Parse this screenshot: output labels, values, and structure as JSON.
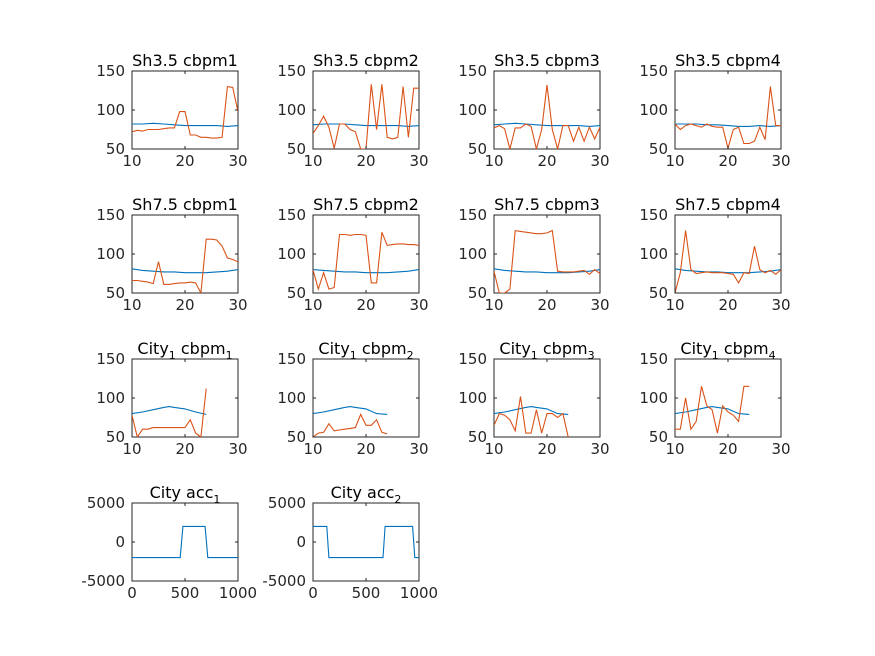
{
  "figure": {
    "background": "#ffffff",
    "axis_color": "#262626"
  },
  "chart_data": [
    {
      "type": "line",
      "title": "Sh3.5 cbpm1",
      "xlim": [
        10,
        30
      ],
      "ylim": [
        50,
        150
      ],
      "xticks": [
        10,
        20,
        30
      ],
      "yticks": [
        50,
        100,
        150
      ],
      "series": [
        {
          "color": "#0072BD",
          "x": [
            10,
            12,
            14,
            16,
            18,
            20,
            22,
            24,
            26,
            28,
            30
          ],
          "y": [
            82,
            82,
            83,
            82,
            81,
            80,
            80,
            80,
            80,
            79,
            80
          ]
        },
        {
          "color": "#D95319",
          "x": [
            10,
            11,
            12,
            13,
            14,
            15,
            16,
            17,
            18,
            19,
            20,
            21,
            22,
            23,
            24,
            25,
            26,
            27,
            28,
            29,
            30
          ],
          "y": [
            72,
            74,
            73,
            75,
            75,
            75,
            76,
            77,
            77,
            98,
            98,
            68,
            68,
            65,
            65,
            64,
            64,
            65,
            130,
            129,
            98
          ]
        }
      ]
    },
    {
      "type": "line",
      "title": "Sh3.5 cbpm2",
      "xlim": [
        10,
        30
      ],
      "ylim": [
        50,
        150
      ],
      "xticks": [
        10,
        20,
        30
      ],
      "yticks": [
        50,
        100,
        150
      ],
      "series": [
        {
          "color": "#0072BD",
          "x": [
            10,
            12,
            14,
            16,
            18,
            20,
            22,
            24,
            26,
            28,
            30
          ],
          "y": [
            81,
            82,
            82,
            82,
            81,
            80,
            80,
            80,
            80,
            79,
            80
          ]
        },
        {
          "color": "#D95319",
          "x": [
            10,
            11,
            12,
            13,
            14,
            15,
            16,
            17,
            18,
            19,
            20,
            21,
            22,
            23,
            24,
            25,
            26,
            27,
            28,
            29,
            30
          ],
          "y": [
            70,
            80,
            92,
            78,
            51,
            82,
            82,
            75,
            72,
            50,
            50,
            133,
            75,
            133,
            65,
            63,
            65,
            130,
            65,
            128,
            128
          ]
        }
      ]
    },
    {
      "type": "line",
      "title": "Sh3.5 cbpm3",
      "xlim": [
        10,
        30
      ],
      "ylim": [
        50,
        150
      ],
      "xticks": [
        10,
        20,
        30
      ],
      "yticks": [
        50,
        100,
        150
      ],
      "series": [
        {
          "color": "#0072BD",
          "x": [
            10,
            12,
            14,
            16,
            18,
            20,
            22,
            24,
            26,
            28,
            30
          ],
          "y": [
            81,
            82,
            83,
            82,
            81,
            80,
            80,
            80,
            80,
            79,
            80
          ]
        },
        {
          "color": "#D95319",
          "x": [
            10,
            11,
            12,
            13,
            14,
            15,
            16,
            17,
            18,
            19,
            20,
            21,
            22,
            23,
            24,
            25,
            26,
            27,
            28,
            29,
            30
          ],
          "y": [
            77,
            80,
            76,
            50,
            77,
            77,
            82,
            79,
            50,
            75,
            132,
            75,
            50,
            80,
            80,
            60,
            78,
            60,
            78,
            63,
            78
          ]
        }
      ]
    },
    {
      "type": "line",
      "title": "Sh3.5 cbpm4",
      "xlim": [
        10,
        30
      ],
      "ylim": [
        50,
        150
      ],
      "xticks": [
        10,
        20,
        30
      ],
      "yticks": [
        50,
        100,
        150
      ],
      "series": [
        {
          "color": "#0072BD",
          "x": [
            10,
            12,
            14,
            16,
            18,
            20,
            22,
            24,
            26,
            28,
            30
          ],
          "y": [
            82,
            82,
            82,
            81,
            81,
            80,
            79,
            79,
            80,
            79,
            80
          ]
        },
        {
          "color": "#D95319",
          "x": [
            10,
            11,
            12,
            13,
            14,
            15,
            16,
            17,
            18,
            19,
            20,
            21,
            22,
            23,
            24,
            25,
            26,
            27,
            28,
            29,
            30
          ],
          "y": [
            82,
            75,
            80,
            82,
            80,
            78,
            82,
            79,
            78,
            78,
            51,
            75,
            78,
            57,
            57,
            60,
            78,
            62,
            130,
            80,
            80
          ]
        }
      ]
    },
    {
      "type": "line",
      "title": "Sh7.5 cbpm1",
      "xlim": [
        10,
        30
      ],
      "ylim": [
        50,
        150
      ],
      "xticks": [
        10,
        20,
        30
      ],
      "yticks": [
        50,
        100,
        150
      ],
      "series": [
        {
          "color": "#0072BD",
          "x": [
            10,
            12,
            14,
            16,
            18,
            20,
            22,
            24,
            26,
            28,
            30
          ],
          "y": [
            81,
            79,
            78,
            77,
            77,
            76,
            76,
            76,
            77,
            78,
            80
          ]
        },
        {
          "color": "#D95319",
          "x": [
            10,
            11,
            12,
            13,
            14,
            15,
            16,
            17,
            18,
            19,
            20,
            21,
            22,
            23,
            24,
            25,
            26,
            27,
            28,
            29,
            30
          ],
          "y": [
            66,
            66,
            65,
            64,
            62,
            90,
            61,
            61,
            62,
            63,
            63,
            64,
            63,
            50,
            119,
            119,
            118,
            110,
            95,
            93,
            90
          ]
        }
      ]
    },
    {
      "type": "line",
      "title": "Sh7.5 cbpm2",
      "xlim": [
        10,
        30
      ],
      "ylim": [
        50,
        150
      ],
      "xticks": [
        10,
        20,
        30
      ],
      "yticks": [
        50,
        100,
        150
      ],
      "series": [
        {
          "color": "#0072BD",
          "x": [
            10,
            12,
            14,
            16,
            18,
            20,
            22,
            24,
            26,
            28,
            30
          ],
          "y": [
            80,
            79,
            78,
            77,
            77,
            76,
            76,
            76,
            77,
            78,
            80
          ]
        },
        {
          "color": "#D95319",
          "x": [
            10,
            11,
            12,
            13,
            14,
            15,
            16,
            17,
            18,
            19,
            20,
            21,
            22,
            23,
            24,
            25,
            26,
            27,
            28,
            29,
            30
          ],
          "y": [
            80,
            55,
            76,
            55,
            57,
            125,
            125,
            124,
            125,
            125,
            124,
            63,
            63,
            128,
            111,
            112,
            113,
            113,
            112,
            112,
            111
          ]
        }
      ]
    },
    {
      "type": "line",
      "title": "Sh7.5 cbpm3",
      "xlim": [
        10,
        30
      ],
      "ylim": [
        50,
        150
      ],
      "xticks": [
        10,
        20,
        30
      ],
      "yticks": [
        50,
        100,
        150
      ],
      "series": [
        {
          "color": "#0072BD",
          "x": [
            10,
            12,
            14,
            16,
            18,
            20,
            22,
            24,
            26,
            28,
            30
          ],
          "y": [
            81,
            79,
            78,
            77,
            77,
            76,
            76,
            76,
            77,
            78,
            80
          ]
        },
        {
          "color": "#D95319",
          "x": [
            10,
            11,
            12,
            13,
            14,
            15,
            16,
            17,
            18,
            19,
            20,
            21,
            22,
            23,
            24,
            25,
            26,
            27,
            28,
            29,
            30
          ],
          "y": [
            78,
            50,
            50,
            55,
            130,
            129,
            128,
            127,
            126,
            126,
            127,
            130,
            78,
            77,
            77,
            77,
            78,
            79,
            74,
            80,
            75
          ]
        }
      ]
    },
    {
      "type": "line",
      "title": "Sh7.5 cbpm4",
      "xlim": [
        10,
        30
      ],
      "ylim": [
        50,
        150
      ],
      "xticks": [
        10,
        20,
        30
      ],
      "yticks": [
        50,
        100,
        150
      ],
      "series": [
        {
          "color": "#0072BD",
          "x": [
            10,
            12,
            14,
            16,
            18,
            20,
            22,
            24,
            26,
            28,
            30
          ],
          "y": [
            81,
            79,
            78,
            77,
            77,
            76,
            76,
            76,
            77,
            78,
            80
          ]
        },
        {
          "color": "#D95319",
          "x": [
            10,
            11,
            12,
            13,
            14,
            15,
            16,
            17,
            18,
            19,
            20,
            21,
            22,
            23,
            24,
            25,
            26,
            27,
            28,
            29,
            30
          ],
          "y": [
            50,
            76,
            130,
            80,
            75,
            76,
            77,
            76,
            76,
            76,
            75,
            74,
            63,
            76,
            75,
            110,
            80,
            76,
            79,
            74,
            80
          ]
        }
      ]
    },
    {
      "type": "line",
      "title": "City",
      "title_sub": "1",
      "title_tail": "  cbpm",
      "title_tail_sub": "1",
      "xlim": [
        10,
        30
      ],
      "ylim": [
        50,
        150
      ],
      "xticks": [
        10,
        20,
        30
      ],
      "yticks": [
        50,
        100,
        150
      ],
      "series": [
        {
          "color": "#0072BD",
          "x": [
            10,
            12,
            14,
            16,
            17,
            18,
            20,
            22,
            24
          ],
          "y": [
            80,
            82,
            85,
            88,
            89,
            88,
            86,
            82,
            79
          ]
        },
        {
          "color": "#D95319",
          "x": [
            10,
            11,
            12,
            13,
            14,
            15,
            16,
            17,
            18,
            19,
            20,
            21,
            22,
            23,
            24
          ],
          "y": [
            78,
            50,
            60,
            60,
            62,
            62,
            62,
            62,
            62,
            62,
            62,
            72,
            55,
            50,
            112
          ]
        }
      ]
    },
    {
      "type": "line",
      "title": "City",
      "title_sub": "1",
      "title_tail": "  cbpm",
      "title_tail_sub": "2",
      "xlim": [
        10,
        30
      ],
      "ylim": [
        50,
        150
      ],
      "xticks": [
        10,
        20,
        30
      ],
      "yticks": [
        50,
        100,
        150
      ],
      "series": [
        {
          "color": "#0072BD",
          "x": [
            10,
            12,
            14,
            16,
            17,
            18,
            20,
            22,
            24
          ],
          "y": [
            80,
            82,
            85,
            88,
            89,
            88,
            86,
            80,
            79
          ]
        },
        {
          "color": "#D95319",
          "x": [
            10,
            11,
            12,
            13,
            14,
            15,
            16,
            17,
            18,
            19,
            20,
            21,
            22,
            23,
            24
          ],
          "y": [
            50,
            55,
            56,
            67,
            58,
            59,
            60,
            61,
            62,
            79,
            65,
            65,
            72,
            56,
            54
          ]
        }
      ]
    },
    {
      "type": "line",
      "title": "City",
      "title_sub": "1",
      "title_tail": "  cbpm",
      "title_tail_sub": "3",
      "xlim": [
        10,
        30
      ],
      "ylim": [
        50,
        150
      ],
      "xticks": [
        10,
        20,
        30
      ],
      "yticks": [
        50,
        100,
        150
      ],
      "series": [
        {
          "color": "#0072BD",
          "x": [
            10,
            12,
            14,
            16,
            17,
            18,
            20,
            22,
            24
          ],
          "y": [
            80,
            82,
            85,
            88,
            89,
            88,
            86,
            80,
            79
          ]
        },
        {
          "color": "#D95319",
          "x": [
            10,
            11,
            12,
            13,
            14,
            15,
            16,
            17,
            18,
            19,
            20,
            21,
            22,
            23,
            24
          ],
          "y": [
            65,
            80,
            78,
            72,
            58,
            102,
            55,
            55,
            85,
            55,
            80,
            80,
            75,
            80,
            50
          ]
        }
      ]
    },
    {
      "type": "line",
      "title": "City",
      "title_sub": "1",
      "title_tail": "  cbpm",
      "title_tail_sub": "4",
      "xlim": [
        10,
        30
      ],
      "ylim": [
        50,
        150
      ],
      "xticks": [
        10,
        20,
        30
      ],
      "yticks": [
        50,
        100,
        150
      ],
      "series": [
        {
          "color": "#0072BD",
          "x": [
            10,
            12,
            14,
            16,
            17,
            18,
            20,
            22,
            24
          ],
          "y": [
            80,
            82,
            85,
            88,
            89,
            88,
            86,
            80,
            79
          ]
        },
        {
          "color": "#D95319",
          "x": [
            10,
            11,
            12,
            13,
            14,
            15,
            16,
            17,
            18,
            19,
            20,
            21,
            22,
            23,
            24
          ],
          "y": [
            60,
            60,
            100,
            60,
            70,
            115,
            90,
            85,
            55,
            90,
            82,
            78,
            70,
            115,
            115
          ]
        }
      ]
    },
    {
      "type": "line",
      "title": "City acc",
      "title_sub": "1",
      "xlim": [
        0,
        1000
      ],
      "ylim": [
        -5000,
        5000
      ],
      "xticks": [
        0,
        500,
        1000
      ],
      "yticks": [
        -5000,
        0,
        5000
      ],
      "series": [
        {
          "color": "#0072BD",
          "x": [
            0,
            455,
            480,
            690,
            715,
            1000
          ],
          "y": [
            -2000,
            -2000,
            2000,
            2000,
            -2000,
            -2000
          ]
        }
      ]
    },
    {
      "type": "line",
      "title": "City acc",
      "title_sub": "2",
      "xlim": [
        0,
        1000
      ],
      "ylim": [
        -5000,
        5000
      ],
      "xticks": [
        0,
        500,
        1000
      ],
      "yticks": [
        -5000,
        0,
        5000
      ],
      "series": [
        {
          "color": "#0072BD",
          "x": [
            0,
            130,
            150,
            660,
            680,
            940,
            960,
            1000
          ],
          "y": [
            2000,
            2000,
            -2000,
            -2000,
            2000,
            2000,
            -2000,
            -2000
          ]
        }
      ]
    }
  ]
}
